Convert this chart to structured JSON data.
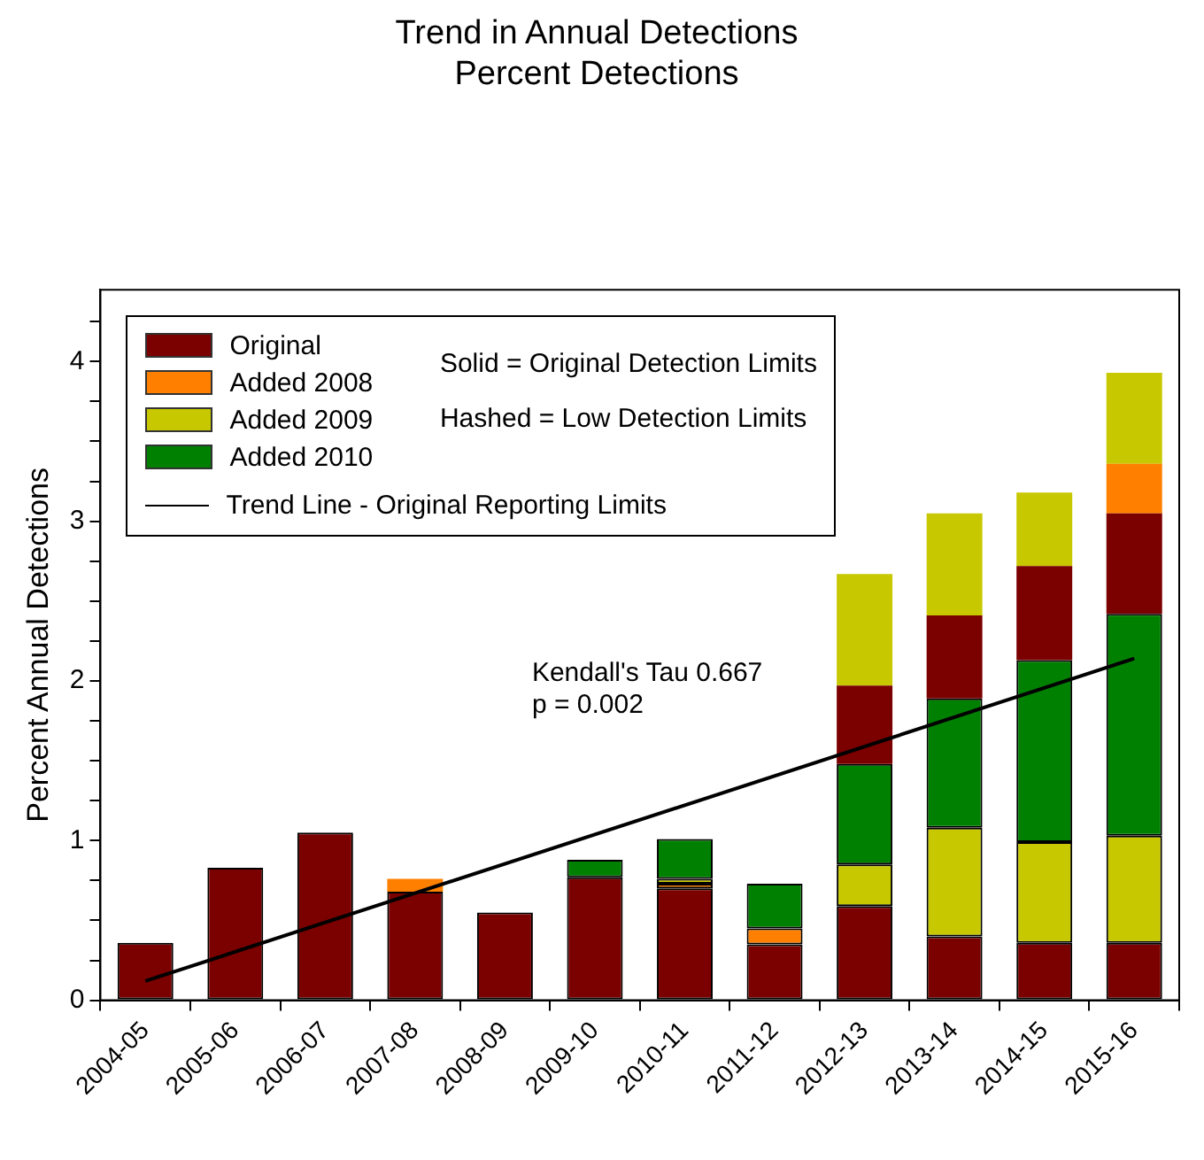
{
  "chart_data": {
    "type": "bar",
    "title": "Trend in Annual Detections",
    "subtitle": "Percent Detections",
    "ylabel": "Percent Annual Detections",
    "categories": [
      "2004-05",
      "2005-06",
      "2006-07",
      "2007-08",
      "2008-09",
      "2009-10",
      "2010-11",
      "2011-12",
      "2012-13",
      "2013-14",
      "2014-15",
      "2015-16"
    ],
    "stacked": true,
    "legend": "top left",
    "ylim": [
      0,
      4.45
    ],
    "yticks": [
      0,
      {
        "value": 0.25,
        "label": null
      },
      {
        "value": 0.5,
        "label": null
      },
      {
        "value": 0.75,
        "label": null
      },
      1,
      {
        "value": 1.25,
        "label": null
      },
      {
        "value": 1.5,
        "label": null
      },
      {
        "value": 1.75,
        "label": null
      },
      2,
      {
        "value": 2.25,
        "label": null
      },
      {
        "value": 2.5,
        "label": null
      },
      {
        "value": 2.75,
        "label": null
      },
      3,
      {
        "value": 3.25,
        "label": null
      },
      {
        "value": 3.5,
        "label": null
      },
      {
        "value": 3.75,
        "label": null
      },
      4,
      {
        "value": 4.25,
        "label": null
      }
    ],
    "series": [
      {
        "name": "Original",
        "color": "#7b0000",
        "values": [
          0.36,
          0.83,
          1.05,
          0.68,
          0.55,
          0.77,
          0.7,
          0.35,
          0.59,
          0.4,
          0.36,
          0.36
        ]
      },
      {
        "name": "Added 2008",
        "color": "#ff8000",
        "values": [
          null,
          null,
          null,
          null,
          null,
          null,
          0.03,
          0.1,
          null,
          null,
          null,
          null
        ]
      },
      {
        "name": "Added 2009",
        "color": "#c8c800",
        "values": [
          null,
          null,
          null,
          null,
          null,
          null,
          0.03,
          null,
          0.26,
          0.68,
          0.63,
          0.67
        ]
      },
      {
        "name": "Added 2010",
        "color": "#008000",
        "values": [
          null,
          null,
          null,
          null,
          null,
          0.11,
          0.25,
          0.28,
          0.63,
          0.81,
          1.14,
          1.39
        ]
      },
      {
        "color": "#7b0000",
        "values": [
          null,
          null,
          null,
          null,
          null,
          null,
          null,
          null,
          0.49,
          0.52,
          0.59,
          0.63
        ]
      },
      {
        "color": "#ff8000",
        "values": [
          null,
          null,
          null,
          0.08,
          null,
          null,
          null,
          null,
          null,
          null,
          null,
          0.31
        ]
      },
      {
        "color": "#c8c800",
        "values": [
          null,
          null,
          null,
          null,
          null,
          null,
          null,
          null,
          0.7,
          0.64,
          0.46,
          0.57
        ]
      },
      {
        "name": "Trend Line - Original Reporting Limits",
        "type": "line",
        "color": "#000000",
        "values": [
          0.12,
          null,
          null,
          null,
          null,
          null,
          null,
          null,
          null,
          null,
          null,
          2.14
        ]
      }
    ],
    "annotations": [
      "Solid = Original Detection Limits",
      "Hashed = Low Detection Limits",
      "Kendall's Tau 0.667\np = 0.002"
    ]
  }
}
